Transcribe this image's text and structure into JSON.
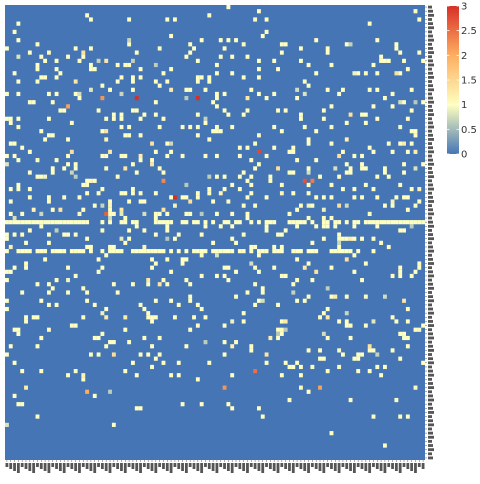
{
  "chart_data": {
    "type": "heatmap",
    "title": "",
    "xlabel": "",
    "ylabel": "",
    "x_tick_labels_legible": false,
    "y_tick_labels_legible": false,
    "dimensions_estimate": {
      "columns": 110,
      "rows": 110
    },
    "value_range": [
      0,
      3
    ],
    "colorscale": [
      {
        "value": 0,
        "color": "#4575b4"
      },
      {
        "value": 1,
        "color": "#ffffbf"
      },
      {
        "value": 2,
        "color": "#fdae61"
      },
      {
        "value": 3,
        "color": "#d73027"
      }
    ],
    "background_value": 0,
    "legend": {
      "position": "right",
      "ticks": [
        "0",
        "0.5",
        "1",
        "1.5",
        "2",
        "2.5",
        "3"
      ],
      "tick_values": [
        0,
        0.5,
        1,
        1.5,
        2,
        2.5,
        3
      ]
    },
    "nonzero_cells_note": "sparse matrix; mostly 0 with scattered cells near 1 and a few reaching 2-3",
    "high_value_cells": [
      {
        "col": 34,
        "row": 22,
        "value": 3
      },
      {
        "col": 50,
        "row": 22,
        "value": 3
      },
      {
        "col": 66,
        "row": 35,
        "value": 2.8
      },
      {
        "col": 44,
        "row": 46,
        "value": 3
      },
      {
        "col": 78,
        "row": 42,
        "value": 2.7
      },
      {
        "col": 41,
        "row": 42,
        "value": 2.3
      },
      {
        "col": 80,
        "row": 42,
        "value": 2.4
      },
      {
        "col": 26,
        "row": 50,
        "value": 2.6
      },
      {
        "col": 25,
        "row": 22,
        "value": 2.2
      },
      {
        "col": 16,
        "row": 24,
        "value": 2.1
      },
      {
        "col": 65,
        "row": 88,
        "value": 2.5
      },
      {
        "col": 57,
        "row": 92,
        "value": 2.2
      },
      {
        "col": 82,
        "row": 92,
        "value": 2.1
      },
      {
        "col": 21,
        "row": 93,
        "value": 2.0
      }
    ],
    "dense_rows": [
      {
        "row": 52,
        "value": 1,
        "from_col": 0,
        "to_col": 109
      },
      {
        "row": 59,
        "value": 1,
        "from_col": 0,
        "to_col": 90
      }
    ]
  }
}
